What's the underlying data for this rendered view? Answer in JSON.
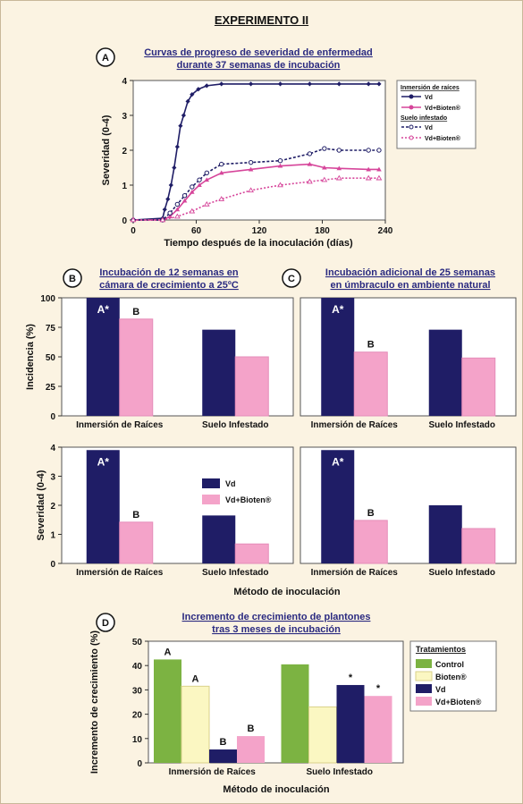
{
  "page": {
    "title": "EXPERIMENTO II"
  },
  "colors": {
    "vd": "#1f1d66",
    "vd_bioten": "#f4a3c9",
    "control": "#7cb342",
    "bioten": "#fbf7c2",
    "vd_bioten_line": "#d6459a"
  },
  "chart_data": [
    {
      "id": "A",
      "type": "line",
      "title": "Curvas de progreso de severidad de enfermedad",
      "title_line2": "durante 37 semanas de incubación",
      "xlabel": "Tiempo después de la inoculación (días)",
      "ylabel": "Severidad (0-4)",
      "xlim": [
        0,
        240
      ],
      "ylim": [
        0,
        4
      ],
      "xticks": [
        0,
        60,
        120,
        180,
        240
      ],
      "yticks": [
        0,
        1,
        2,
        3,
        4
      ],
      "legend": {
        "group1": "Inmersión de raíces",
        "group2": "Suelo infestado",
        "vd": "Vd",
        "vd_bioten": "Vd+Bioten®"
      },
      "series": [
        {
          "group": "Inmersión de raíces",
          "name": "Vd",
          "x": [
            0,
            28,
            30,
            33,
            36,
            39,
            42,
            45,
            48,
            52,
            56,
            62,
            70,
            84,
            112,
            140,
            168,
            196,
            224,
            234
          ],
          "y": [
            0,
            0.05,
            0.3,
            0.6,
            1,
            1.5,
            2.1,
            2.7,
            3,
            3.4,
            3.6,
            3.75,
            3.85,
            3.9,
            3.9,
            3.9,
            3.9,
            3.9,
            3.9,
            3.9
          ]
        },
        {
          "group": "Inmersión de raíces",
          "name": "Vd+Bioten®",
          "x": [
            0,
            28,
            35,
            42,
            49,
            56,
            63,
            70,
            84,
            112,
            140,
            168,
            182,
            196,
            224,
            234
          ],
          "y": [
            0,
            0,
            0.1,
            0.3,
            0.55,
            0.8,
            1.0,
            1.15,
            1.35,
            1.45,
            1.55,
            1.6,
            1.5,
            1.48,
            1.45,
            1.45
          ]
        },
        {
          "group": "Suelo infestado",
          "name": "Vd",
          "x": [
            0,
            28,
            35,
            42,
            49,
            56,
            63,
            70,
            84,
            112,
            140,
            168,
            182,
            196,
            224,
            234
          ],
          "y": [
            0,
            0,
            0.2,
            0.45,
            0.7,
            0.95,
            1.15,
            1.35,
            1.6,
            1.65,
            1.7,
            1.9,
            2.05,
            2.0,
            2.0,
            2.0
          ]
        },
        {
          "group": "Suelo infestado",
          "name": "Vd+Bioten®",
          "x": [
            0,
            28,
            42,
            56,
            70,
            84,
            112,
            140,
            168,
            182,
            196,
            224,
            234
          ],
          "y": [
            0,
            0,
            0.1,
            0.25,
            0.45,
            0.6,
            0.85,
            1.0,
            1.1,
            1.15,
            1.2,
            1.2,
            1.2
          ]
        }
      ]
    },
    {
      "id": "B-incidence",
      "type": "bar",
      "title": "Incubación de 12 semanas en",
      "title_line2": "cámara de crecimiento a 25ºC",
      "ylabel": "Incidencia (%)",
      "ylim": [
        0,
        100
      ],
      "yticks": [
        0,
        25,
        50,
        75,
        100
      ],
      "categories": [
        "Inmersión de Raíces",
        "Suelo Infestado"
      ],
      "series": [
        {
          "name": "Vd",
          "values": [
            100,
            73
          ]
        },
        {
          "name": "Vd+Bioten®",
          "values": [
            82,
            50
          ]
        }
      ],
      "annotations": [
        {
          "series": 0,
          "cat": 0,
          "text": "A*"
        },
        {
          "series": 1,
          "cat": 0,
          "text": "B"
        }
      ]
    },
    {
      "id": "C-incidence",
      "type": "bar",
      "title": "Incubación adicional de 25 semanas",
      "title_line2": "en úmbraculo en ambiente natural",
      "ylim": [
        0,
        100
      ],
      "yticks": [
        0,
        25,
        50,
        75,
        100
      ],
      "categories": [
        "Inmersión de Raíces",
        "Suelo Infestado"
      ],
      "series": [
        {
          "name": "Vd",
          "values": [
            100,
            73
          ]
        },
        {
          "name": "Vd+Bioten®",
          "values": [
            54,
            49
          ]
        }
      ],
      "annotations": [
        {
          "series": 0,
          "cat": 0,
          "text": "A*"
        },
        {
          "series": 1,
          "cat": 0,
          "text": "B"
        }
      ]
    },
    {
      "id": "B-severity",
      "type": "bar",
      "ylabel": "Severidad (0-4)",
      "ylim": [
        0,
        4
      ],
      "yticks": [
        0,
        1,
        2,
        3,
        4
      ],
      "categories": [
        "Inmersión de Raíces",
        "Suelo Infestado"
      ],
      "series": [
        {
          "name": "Vd",
          "values": [
            3.9,
            1.65
          ]
        },
        {
          "name": "Vd+Bioten®",
          "values": [
            1.42,
            0.67
          ]
        }
      ],
      "annotations": [
        {
          "series": 0,
          "cat": 0,
          "text": "A*"
        },
        {
          "series": 1,
          "cat": 0,
          "text": "B"
        }
      ],
      "legend": {
        "vd": "Vd",
        "vd_bioten": "Vd+Bioten®"
      }
    },
    {
      "id": "C-severity",
      "type": "bar",
      "ylim": [
        0,
        4
      ],
      "yticks": [
        0,
        1,
        2,
        3,
        4
      ],
      "categories": [
        "Inmersión de Raíces",
        "Suelo Infestado"
      ],
      "series": [
        {
          "name": "Vd",
          "values": [
            3.9,
            2.0
          ]
        },
        {
          "name": "Vd+Bioten®",
          "values": [
            1.48,
            1.2
          ]
        }
      ],
      "annotations": [
        {
          "series": 0,
          "cat": 0,
          "text": "A*"
        },
        {
          "series": 1,
          "cat": 0,
          "text": "B"
        }
      ]
    },
    {
      "id": "D",
      "type": "bar",
      "title": "Incremento de crecimiento de plantones",
      "title_line2": "tras 3 meses de incubación",
      "xlabel": "Método de inoculación",
      "ylabel": "Incremento de crecimiento (%)",
      "ylim": [
        0,
        50
      ],
      "yticks": [
        0,
        10,
        20,
        30,
        40,
        50
      ],
      "categories": [
        "Inmersión de Raíces",
        "Suelo Infestado"
      ],
      "series": [
        {
          "name": "Control",
          "values": [
            42.5,
            40.5
          ]
        },
        {
          "name": "Bioten®",
          "values": [
            31.5,
            23
          ]
        },
        {
          "name": "Vd",
          "values": [
            5.5,
            32
          ]
        },
        {
          "name": "Vd+Bioten®",
          "values": [
            11,
            27.5
          ]
        }
      ],
      "annotations": [
        {
          "series": 0,
          "cat": 0,
          "text": "A"
        },
        {
          "series": 1,
          "cat": 0,
          "text": "A"
        },
        {
          "series": 2,
          "cat": 0,
          "text": "B"
        },
        {
          "series": 3,
          "cat": 0,
          "text": "B"
        },
        {
          "series": 2,
          "cat": 1,
          "text": "*"
        },
        {
          "series": 3,
          "cat": 1,
          "text": "*"
        }
      ],
      "legend_title": "Tratamientos"
    }
  ],
  "shared": {
    "xlabel_bc": "Método de inoculación"
  }
}
